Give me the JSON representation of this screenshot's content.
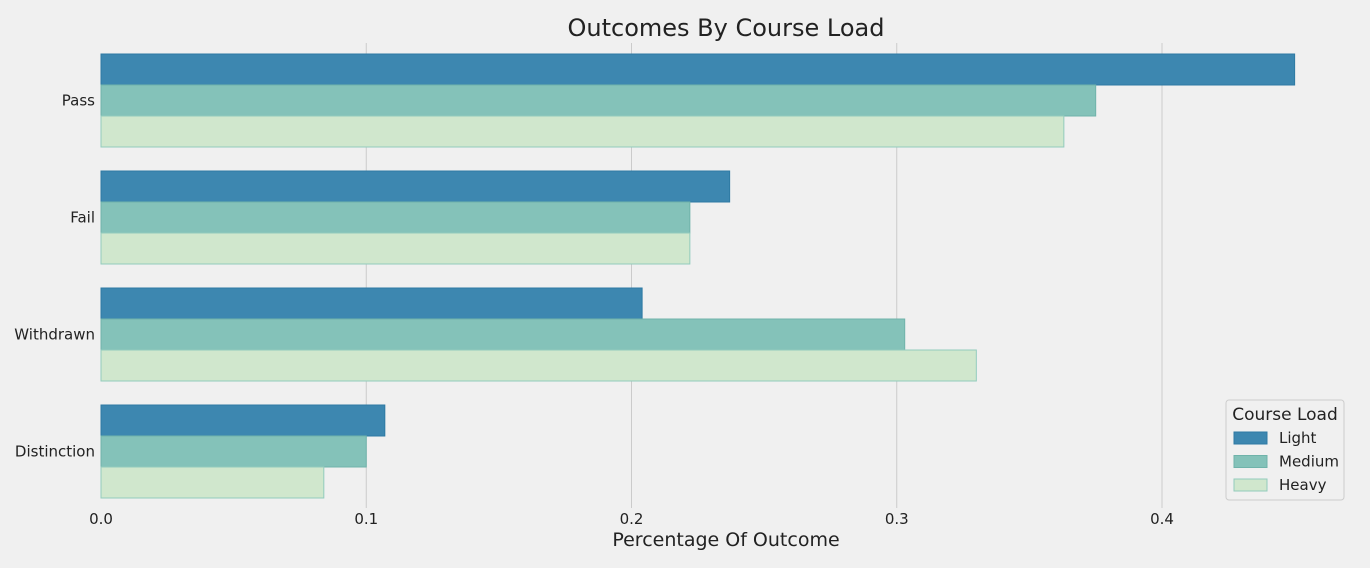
{
  "chart_data": {
    "type": "bar",
    "orientation": "horizontal",
    "title": "Outcomes By Course Load",
    "xlabel": "Percentage Of Outcome",
    "ylabel": "",
    "categories": [
      "Pass",
      "Fail",
      "Withdrawn",
      "Distinction"
    ],
    "xlim": [
      0,
      0.45
    ],
    "xticks": [
      "0.0",
      "0.1",
      "0.2",
      "0.3",
      "0.4"
    ],
    "grid": "vertical",
    "legend": {
      "title": "Course Load",
      "position": "lower-right"
    },
    "series": [
      {
        "name": "Light",
        "color": "#3d87b0",
        "values": [
          0.45,
          0.237,
          0.204,
          0.107
        ]
      },
      {
        "name": "Medium",
        "color": "#84c2b9",
        "values": [
          0.375,
          0.222,
          0.303,
          0.1
        ]
      },
      {
        "name": "Heavy",
        "color": "#d0e7cd",
        "values": [
          0.363,
          0.222,
          0.33,
          0.084
        ]
      }
    ]
  }
}
